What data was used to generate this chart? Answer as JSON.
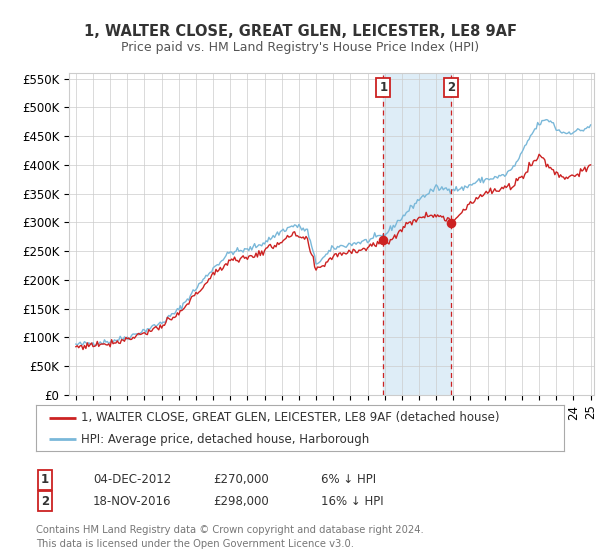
{
  "title": "1, WALTER CLOSE, GREAT GLEN, LEICESTER, LE8 9AF",
  "subtitle": "Price paid vs. HM Land Registry's House Price Index (HPI)",
  "ylim": [
    0,
    560000
  ],
  "yticks": [
    0,
    50000,
    100000,
    150000,
    200000,
    250000,
    300000,
    350000,
    400000,
    450000,
    500000,
    550000
  ],
  "ytick_labels": [
    "£0",
    "£50K",
    "£100K",
    "£150K",
    "£200K",
    "£250K",
    "£300K",
    "£350K",
    "£400K",
    "£450K",
    "£500K",
    "£550K"
  ],
  "hpi_color": "#7ab8d9",
  "price_color": "#cc2222",
  "marker_color": "#cc2222",
  "vline_color": "#cc2222",
  "shade_color": "#deedf7",
  "grid_color": "#cccccc",
  "bg_color": "#ffffff",
  "legend_label_price": "1, WALTER CLOSE, GREAT GLEN, LEICESTER, LE8 9AF (detached house)",
  "legend_label_hpi": "HPI: Average price, detached house, Harborough",
  "event1_label": "1",
  "event1_date": "04-DEC-2012",
  "event1_price": "£270,000",
  "event1_pct": "6% ↓ HPI",
  "event1_x": 2012.92,
  "event1_y": 270000,
  "event2_label": "2",
  "event2_date": "18-NOV-2016",
  "event2_price": "£298,000",
  "event2_pct": "16% ↓ HPI",
  "event2_x": 2016.88,
  "event2_y": 298000,
  "footnote1": "Contains HM Land Registry data © Crown copyright and database right 2024.",
  "footnote2": "This data is licensed under the Open Government Licence v3.0.",
  "title_fontsize": 10.5,
  "subtitle_fontsize": 9,
  "tick_fontsize": 8.5,
  "legend_fontsize": 8.5,
  "annotation_fontsize": 8.5,
  "xlim_left": 1994.6,
  "xlim_right": 2025.2
}
